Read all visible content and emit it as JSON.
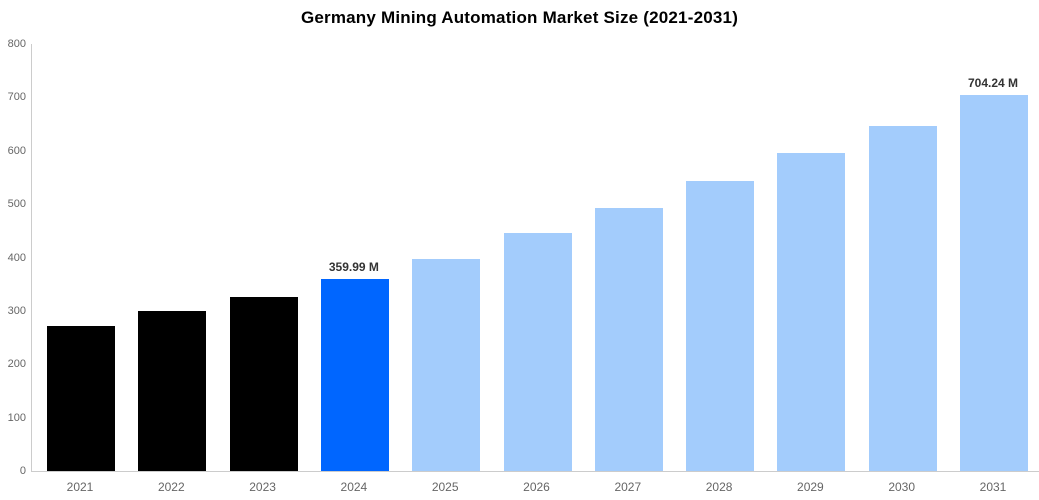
{
  "chart_data": {
    "type": "bar",
    "title": "Germany Mining Automation Market Size (2021-2031)",
    "categories": [
      "2021",
      "2022",
      "2023",
      "2024",
      "2025",
      "2026",
      "2027",
      "2028",
      "2029",
      "2030",
      "2031"
    ],
    "values": [
      271,
      299,
      326,
      359.99,
      397,
      445,
      493,
      543,
      595,
      647,
      704.24
    ],
    "value_labels": [
      "",
      "",
      "",
      "359.99 M",
      "",
      "",
      "",
      "",
      "",
      "",
      "704.24 M"
    ],
    "bar_colors": [
      "#000000",
      "#000000",
      "#000000",
      "#0066FF",
      "#A3CCFC",
      "#A3CCFC",
      "#A3CCFC",
      "#A3CCFC",
      "#A3CCFC",
      "#A3CCFC",
      "#A3CCFC"
    ],
    "yticks": [
      0,
      100,
      200,
      300,
      400,
      500,
      600,
      700,
      800
    ],
    "ylim": [
      0,
      800
    ],
    "xlabel": "",
    "ylabel": "",
    "grid": false,
    "legend": false,
    "colors": {
      "historical_bar": "#000000",
      "highlight_bar": "#0066FF",
      "forecast_bar": "#A3CCFC",
      "axis_line": "#cccccc",
      "tick_text": "#666666",
      "value_label_text": "#333333",
      "title_text": "#000000"
    }
  }
}
